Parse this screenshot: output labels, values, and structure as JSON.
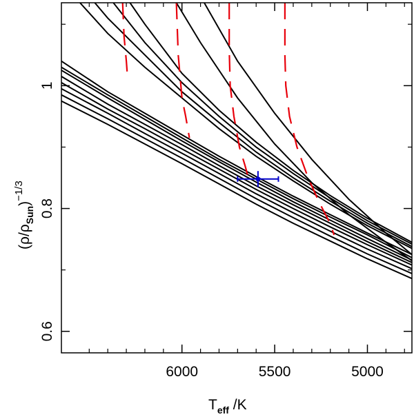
{
  "chart_data": {
    "type": "line",
    "xlabel": {
      "main": "T",
      "sub": "eff",
      "unit": " /K"
    },
    "ylabel": {
      "prefix": "(ρ/ρ",
      "sub": "Sun",
      "suffix": ")",
      "exponent": "−1/3"
    },
    "xlim": [
      6650,
      4760
    ],
    "ylim": [
      0.565,
      1.135
    ],
    "xticks": [
      6000,
      5500,
      5000
    ],
    "xtick_labels": [
      "6000",
      "5500",
      "5000"
    ],
    "yticks": [
      0.6,
      0.8,
      1.0
    ],
    "ytick_labels": [
      "0.6",
      "0.8",
      "1"
    ],
    "isochrones": [
      {
        "name": "track-1",
        "x": [
          6650,
          6400,
          6200,
          6000,
          5800,
          5600,
          5400,
          5200,
          5000,
          4760
        ],
        "y": [
          1.04,
          0.99,
          0.955,
          0.92,
          0.885,
          0.852,
          0.82,
          0.79,
          0.76,
          0.725
        ]
      },
      {
        "name": "track-2",
        "x": [
          6650,
          6400,
          6200,
          6000,
          5800,
          5600,
          5400,
          5200,
          5000,
          4760
        ],
        "y": [
          1.03,
          0.985,
          0.95,
          0.915,
          0.88,
          0.848,
          0.816,
          0.786,
          0.757,
          0.72
        ]
      },
      {
        "name": "track-3",
        "x": [
          6650,
          6400,
          6200,
          6000,
          5800,
          5600,
          5400,
          5200,
          5000,
          4760
        ],
        "y": [
          1.025,
          0.98,
          0.945,
          0.91,
          0.876,
          0.843,
          0.811,
          0.781,
          0.751,
          0.716
        ]
      },
      {
        "name": "track-4",
        "x": [
          6650,
          6400,
          6200,
          6000,
          5800,
          5600,
          5400,
          5200,
          5000,
          4760
        ],
        "y": [
          1.015,
          0.97,
          0.937,
          0.904,
          0.87,
          0.837,
          0.806,
          0.776,
          0.746,
          0.712
        ]
      },
      {
        "name": "track-5",
        "x": [
          6650,
          6400,
          6200,
          6000,
          5800,
          5600,
          5400,
          5200,
          5000,
          4760
        ],
        "y": [
          1.005,
          0.962,
          0.93,
          0.897,
          0.864,
          0.831,
          0.8,
          0.77,
          0.741,
          0.708
        ]
      },
      {
        "name": "track-6",
        "x": [
          6650,
          6400,
          6200,
          6000,
          5800,
          5600,
          5400,
          5200,
          5000,
          4760
        ],
        "y": [
          0.995,
          0.955,
          0.922,
          0.89,
          0.857,
          0.824,
          0.793,
          0.763,
          0.734,
          0.702
        ]
      },
      {
        "name": "track-7",
        "x": [
          6650,
          6400,
          6200,
          6000,
          5800,
          5600,
          5400,
          5200,
          5000,
          4760
        ],
        "y": [
          0.985,
          0.946,
          0.914,
          0.882,
          0.849,
          0.816,
          0.785,
          0.755,
          0.726,
          0.694
        ]
      },
      {
        "name": "track-8",
        "x": [
          6650,
          6400,
          6200,
          6000,
          5800,
          5600,
          5400,
          5200,
          5000,
          4760
        ],
        "y": [
          0.975,
          0.937,
          0.905,
          0.873,
          0.84,
          0.807,
          0.776,
          0.747,
          0.718,
          0.686
        ]
      },
      {
        "name": "track-9",
        "x": [
          6550,
          6400,
          6200,
          6000,
          5800,
          5600,
          5400,
          5200,
          5000,
          4760
        ],
        "y": [
          1.135,
          1.085,
          1.03,
          0.98,
          0.93,
          0.885,
          0.845,
          0.807,
          0.772,
          0.735
        ]
      },
      {
        "name": "track-10",
        "x": [
          6470,
          6400,
          6200,
          6000,
          5800,
          5600,
          5400,
          5200,
          5000,
          4760
        ],
        "y": [
          1.135,
          1.11,
          1.05,
          0.99,
          0.94,
          0.892,
          0.85,
          0.812,
          0.776,
          0.738
        ]
      },
      {
        "name": "track-11",
        "x": [
          6370,
          6200,
          6000,
          5800,
          5600,
          5400,
          5200,
          5000,
          4760
        ],
        "y": [
          1.135,
          1.07,
          1.005,
          0.95,
          0.9,
          0.857,
          0.817,
          0.78,
          0.742
        ]
      },
      {
        "name": "track-12",
        "x": [
          6280,
          6200,
          6000,
          5800,
          5600,
          5400,
          5200,
          5000,
          4760
        ],
        "y": [
          1.135,
          1.1,
          1.02,
          0.96,
          0.908,
          0.862,
          0.821,
          0.784,
          0.745
        ]
      },
      {
        "name": "track-13",
        "x": [
          6030,
          5900,
          5700,
          5500,
          5300,
          5100,
          4900,
          4760
        ],
        "y": [
          1.135,
          1.07,
          0.98,
          0.905,
          0.842,
          0.79,
          0.745,
          0.715
        ]
      },
      {
        "name": "track-14",
        "x": [
          5880,
          5700,
          5500,
          5300,
          5100,
          4900,
          4760
        ],
        "y": [
          1.135,
          1.04,
          0.955,
          0.88,
          0.815,
          0.76,
          0.725
        ]
      }
    ],
    "dashed_series": [
      {
        "name": "mass-track-1",
        "x": [
          6320,
          6312,
          6300,
          6295
        ],
        "y": [
          1.135,
          1.08,
          1.04,
          1.02
        ]
      },
      {
        "name": "mass-track-2",
        "x": [
          6030,
          6020,
          6000,
          5980,
          5960
        ],
        "y": [
          1.135,
          1.05,
          0.98,
          0.95,
          0.915
        ]
      },
      {
        "name": "mass-track-3",
        "x": [
          5745,
          5745,
          5740,
          5720,
          5690,
          5660,
          5640
        ],
        "y": [
          1.135,
          1.06,
          1.0,
          0.95,
          0.9,
          0.87,
          0.848
        ]
      },
      {
        "name": "mass-track-4",
        "x": [
          5445,
          5445,
          5440,
          5420,
          5380,
          5320,
          5260,
          5200,
          5180
        ],
        "y": [
          1.135,
          1.05,
          1.0,
          0.95,
          0.9,
          0.85,
          0.81,
          0.775,
          0.757
        ]
      }
    ],
    "point": {
      "x": 5590,
      "y": 0.848,
      "x_err_minus": 110,
      "x_err_plus": 110,
      "y_err": 0.013
    },
    "colors": {
      "isochrone": "#000000",
      "dashed": "#e8000b",
      "point": "#0000cc"
    }
  }
}
